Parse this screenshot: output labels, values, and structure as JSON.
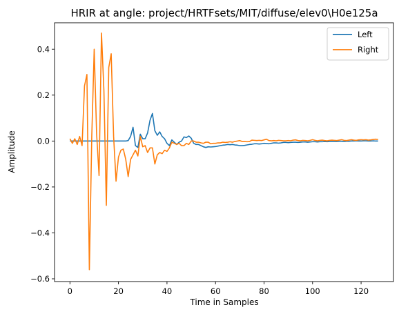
{
  "chart_data": {
    "type": "line",
    "title": "HRIR at angle: project/HRTFsets/MIT/diffuse/elev0\\H0e125a",
    "xlabel": "Time in Samples",
    "ylabel": "Amplitude",
    "xlim": [
      -6.35,
      133.35
    ],
    "ylim": [
      -0.612,
      0.515
    ],
    "xticks": [
      0,
      20,
      40,
      60,
      80,
      100,
      120
    ],
    "xtick_labels": [
      "0",
      "20",
      "40",
      "60",
      "80",
      "100",
      "120"
    ],
    "yticks": [
      -0.6,
      -0.4,
      -0.2,
      0.0,
      0.2,
      0.4
    ],
    "ytick_labels": [
      "−0.6",
      "−0.4",
      "−0.2",
      "0.0",
      "0.2",
      "0.4"
    ],
    "grid": false,
    "legend_position": "top-right",
    "series": [
      {
        "name": "Left",
        "color": "#1f77b4",
        "x": [
          0,
          1,
          2,
          3,
          4,
          5,
          6,
          7,
          8,
          9,
          10,
          11,
          12,
          13,
          14,
          15,
          16,
          17,
          18,
          19,
          20,
          21,
          22,
          23,
          24,
          25,
          26,
          27,
          28,
          29,
          30,
          31,
          32,
          33,
          34,
          35,
          36,
          37,
          38,
          39,
          40,
          41,
          42,
          43,
          44,
          45,
          46,
          47,
          48,
          49,
          50,
          51,
          52,
          53,
          54,
          55,
          56,
          57,
          58,
          59,
          60,
          61,
          62,
          63,
          64,
          65,
          66,
          67,
          68,
          69,
          70,
          71,
          72,
          73,
          74,
          75,
          76,
          77,
          78,
          79,
          80,
          81,
          82,
          83,
          84,
          85,
          86,
          87,
          88,
          89,
          90,
          91,
          92,
          93,
          94,
          95,
          96,
          97,
          98,
          99,
          100,
          101,
          102,
          103,
          104,
          105,
          106,
          107,
          108,
          109,
          110,
          111,
          112,
          113,
          114,
          115,
          116,
          117,
          118,
          119,
          120,
          121,
          122,
          123,
          124,
          125,
          126,
          127
        ],
        "y": [
          0,
          0,
          0,
          0,
          0,
          0,
          0,
          0,
          0,
          0,
          0,
          0,
          0,
          0,
          0,
          0,
          0,
          0,
          0,
          0,
          0,
          0,
          0,
          0,
          0.002,
          0.02,
          0.06,
          -0.02,
          -0.028,
          0.03,
          0.01,
          0.01,
          0.035,
          0.09,
          0.12,
          0.045,
          0.025,
          0.04,
          0.02,
          0.01,
          -0.01,
          -0.02,
          0.005,
          -0.005,
          -0.015,
          -0.005,
          0,
          0.018,
          0.015,
          0.022,
          0.012,
          -0.01,
          -0.015,
          -0.015,
          -0.02,
          -0.025,
          -0.028,
          -0.025,
          -0.026,
          -0.025,
          -0.024,
          -0.022,
          -0.02,
          -0.018,
          -0.017,
          -0.015,
          -0.016,
          -0.015,
          -0.017,
          -0.018,
          -0.02,
          -0.02,
          -0.019,
          -0.017,
          -0.015,
          -0.014,
          -0.012,
          -0.012,
          -0.013,
          -0.012,
          -0.01,
          -0.011,
          -0.012,
          -0.01,
          -0.008,
          -0.008,
          -0.009,
          -0.008,
          -0.006,
          -0.006,
          -0.007,
          -0.006,
          -0.005,
          -0.005,
          -0.006,
          -0.005,
          -0.004,
          -0.004,
          -0.005,
          -0.004,
          -0.003,
          -0.003,
          -0.004,
          -0.003,
          -0.003,
          -0.002,
          -0.003,
          -0.002,
          -0.002,
          -0.002,
          -0.002,
          -0.001,
          -0.001,
          -0.002,
          -0.001,
          -0.001,
          0,
          0,
          0.001,
          0,
          0,
          0.001,
          0.001,
          0,
          0,
          0.001,
          0,
          0
        ]
      },
      {
        "name": "Right",
        "color": "#ff7f0e",
        "x": [
          0,
          1,
          2,
          3,
          4,
          5,
          6,
          7,
          8,
          9,
          10,
          11,
          12,
          13,
          14,
          15,
          16,
          17,
          18,
          19,
          20,
          21,
          22,
          23,
          24,
          25,
          26,
          27,
          28,
          29,
          30,
          31,
          32,
          33,
          34,
          35,
          36,
          37,
          38,
          39,
          40,
          41,
          42,
          43,
          44,
          45,
          46,
          47,
          48,
          49,
          50,
          51,
          52,
          53,
          54,
          55,
          56,
          57,
          58,
          59,
          60,
          61,
          62,
          63,
          64,
          65,
          66,
          67,
          68,
          69,
          70,
          71,
          72,
          73,
          74,
          75,
          76,
          77,
          78,
          79,
          80,
          81,
          82,
          83,
          84,
          85,
          86,
          87,
          88,
          89,
          90,
          91,
          92,
          93,
          94,
          95,
          96,
          97,
          98,
          99,
          100,
          101,
          102,
          103,
          104,
          105,
          106,
          107,
          108,
          109,
          110,
          111,
          112,
          113,
          114,
          115,
          116,
          117,
          118,
          119,
          120,
          121,
          122,
          123,
          124,
          125,
          126,
          127
        ],
        "y": [
          0.01,
          -0.01,
          0.01,
          -0.015,
          0.02,
          -0.02,
          0.24,
          0.29,
          -0.56,
          0.02,
          0.4,
          0.03,
          -0.15,
          0.47,
          0.22,
          -0.28,
          0.32,
          0.38,
          0.02,
          -0.175,
          -0.07,
          -0.04,
          -0.035,
          -0.08,
          -0.155,
          -0.08,
          -0.06,
          -0.04,
          -0.065,
          0.02,
          -0.025,
          -0.02,
          -0.05,
          -0.03,
          -0.03,
          -0.1,
          -0.06,
          -0.05,
          -0.055,
          -0.04,
          -0.045,
          -0.03,
          -0.005,
          -0.01,
          -0.015,
          -0.01,
          -0.02,
          -0.02,
          -0.01,
          -0.015,
          0,
          0,
          -0.005,
          -0.005,
          -0.008,
          -0.01,
          -0.005,
          -0.005,
          -0.012,
          -0.01,
          -0.01,
          -0.008,
          -0.008,
          -0.005,
          -0.006,
          -0.005,
          -0.003,
          -0.005,
          -0.002,
          0,
          0.002,
          -0.002,
          -0.002,
          -0.003,
          -0.002,
          0.004,
          0.003,
          0.002,
          0.003,
          0.002,
          0.005,
          0.008,
          0.002,
          0.001,
          0.002,
          0.001,
          0.003,
          0.002,
          0.001,
          0.001,
          0.002,
          0.001,
          0.004,
          0.005,
          0.002,
          0.001,
          0.003,
          0.002,
          0.001,
          0.003,
          0.006,
          0.003,
          0.001,
          0.003,
          0.004,
          0.002,
          0.001,
          0.003,
          0.004,
          0.003,
          0.002,
          0.004,
          0.006,
          0.003,
          0.002,
          0.004,
          0.006,
          0.004,
          0.003,
          0.005,
          0.006,
          0.005,
          0.006,
          0.004,
          0.005,
          0.007,
          0.008,
          0.007
        ]
      }
    ]
  }
}
